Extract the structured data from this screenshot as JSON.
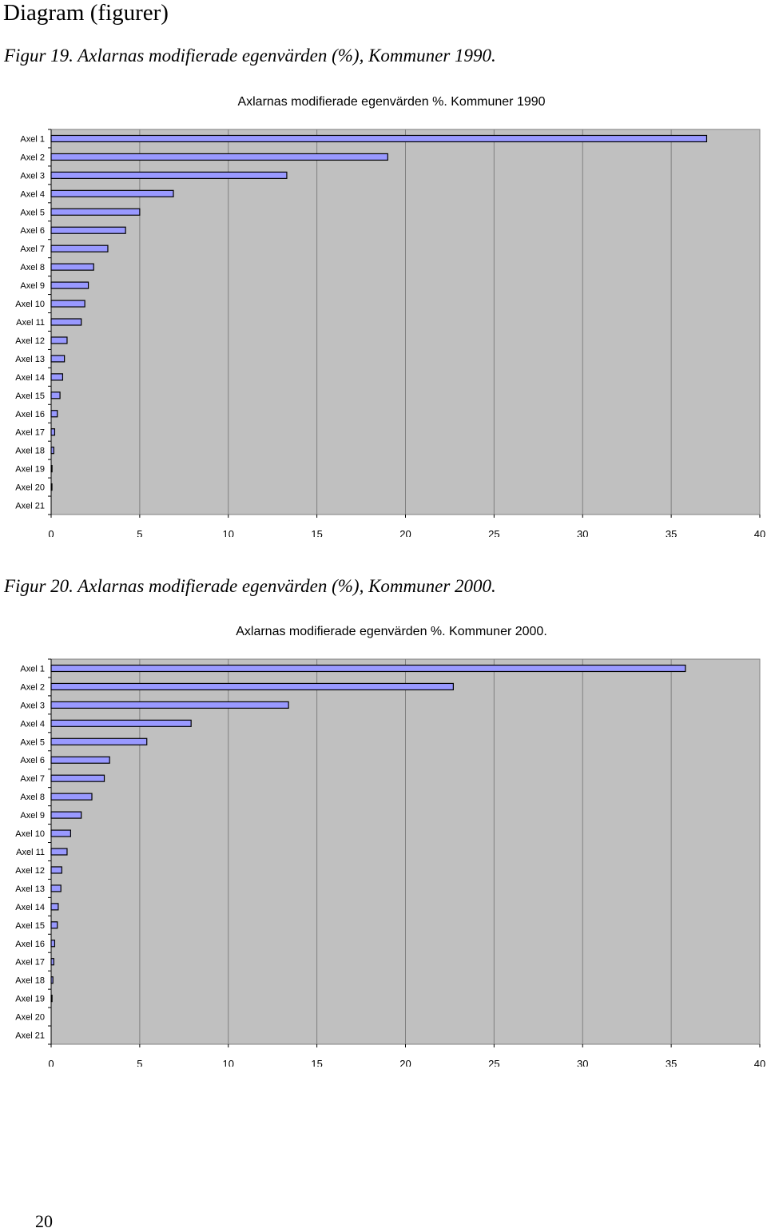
{
  "page": {
    "heading": "Diagram (figurer)",
    "page_number": "20"
  },
  "figures": [
    {
      "caption": "Figur 19. Axlarnas modifierade egenvärden (%), Kommuner 1990.",
      "chart_title": "Axlarnas modifierade egenvärden %. Kommuner 1990"
    },
    {
      "caption": "Figur 20. Axlarnas modifierade egenvärden (%), Kommuner 2000.",
      "chart_title": "Axlarnas modifierade egenvärden %. Kommuner 2000."
    }
  ],
  "colors": {
    "plot_background": "#c0c0c0",
    "bar_fill": "#9999ff",
    "bar_stroke": "#000000",
    "gridline": "#808080"
  },
  "chart_data": [
    {
      "type": "bar",
      "orientation": "horizontal",
      "title": "Axlarnas modifierade egenvärden %. Kommuner 1990",
      "categories": [
        "Axel 1",
        "Axel 2",
        "Axel 3",
        "Axel 4",
        "Axel 5",
        "Axel 6",
        "Axel 7",
        "Axel 8",
        "Axel 9",
        "Axel 10",
        "Axel 11",
        "Axel 12",
        "Axel 13",
        "Axel 14",
        "Axel 15",
        "Axel 16",
        "Axel 17",
        "Axel 18",
        "Axel 19",
        "Axel 20",
        "Axel 21"
      ],
      "values": [
        37.0,
        19.0,
        13.3,
        6.9,
        5.0,
        4.2,
        3.2,
        2.4,
        2.1,
        1.9,
        1.7,
        0.9,
        0.75,
        0.65,
        0.5,
        0.35,
        0.2,
        0.15,
        0.05,
        0.03,
        0.0
      ],
      "xlim": [
        0,
        40
      ],
      "xticks": [
        "0",
        "5",
        "10",
        "15",
        "20",
        "25",
        "30",
        "35",
        "40"
      ],
      "grid": "vertical",
      "legend": "none"
    },
    {
      "type": "bar",
      "orientation": "horizontal",
      "title": "Axlarnas modifierade egenvärden %. Kommuner 2000.",
      "categories": [
        "Axel 1",
        "Axel 2",
        "Axel 3",
        "Axel 4",
        "Axel 5",
        "Axel 6",
        "Axel 7",
        "Axel 8",
        "Axel 9",
        "Axel 10",
        "Axel 11",
        "Axel 12",
        "Axel 13",
        "Axel 14",
        "Axel 15",
        "Axel 16",
        "Axel 17",
        "Axel 18",
        "Axel 19",
        "Axel 20",
        "Axel 21"
      ],
      "values": [
        35.8,
        22.7,
        13.4,
        7.9,
        5.4,
        3.3,
        3.0,
        2.3,
        1.7,
        1.1,
        0.9,
        0.6,
        0.55,
        0.4,
        0.35,
        0.2,
        0.15,
        0.1,
        0.05,
        0.0,
        0.0
      ],
      "xlim": [
        0,
        40
      ],
      "xticks": [
        "0",
        "5",
        "10",
        "15",
        "20",
        "25",
        "30",
        "35",
        "40"
      ],
      "grid": "vertical",
      "legend": "none"
    }
  ]
}
